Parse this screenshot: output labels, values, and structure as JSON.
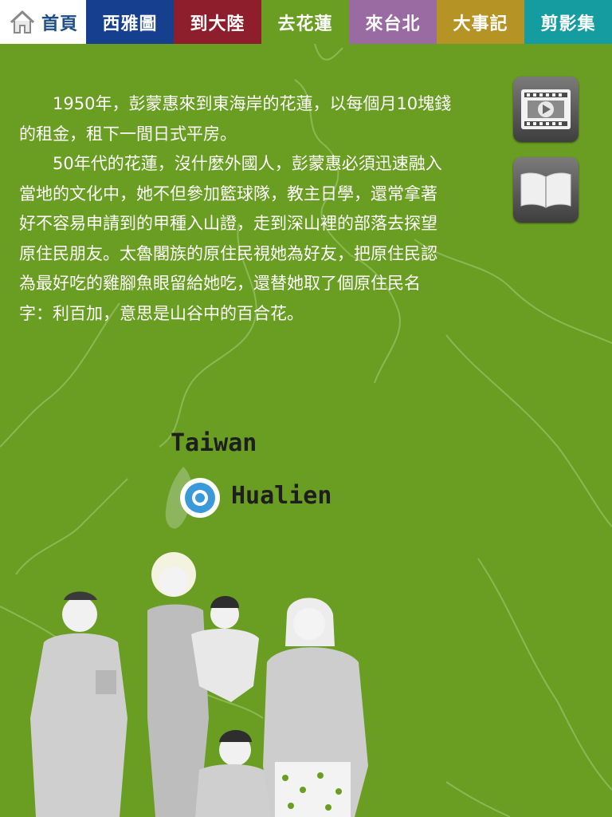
{
  "nav": {
    "home_label": "首頁",
    "tabs": [
      "西雅圖",
      "到大陸",
      "去花蓮",
      "來台北",
      "大事記",
      "剪影集"
    ],
    "active_tab": "去花蓮"
  },
  "article": {
    "paragraphs": [
      "1950年，彭蒙惠來到東海岸的花蓮，以每個月10塊錢的租金，租下一間日式平房。",
      "50年代的花蓮，沒什麼外國人，彭蒙惠必須迅速融入當地的文化中，她不但參加籃球隊，教主日學，還常拿著好不容易申請到的甲種入山證，走到深山裡的部落去探望原住民朋友。太魯閣族的原住民視她為好友，把原住民認為最好吃的雞腳魚眼留給她吃，還替她取了個原住民名字：利百加，意思是山谷中的百合花。"
    ]
  },
  "side_buttons": {
    "video_icon": "film-play-icon",
    "book_icon": "open-book-icon"
  },
  "map": {
    "country_label": "Taiwan",
    "city_label": "Hualien"
  },
  "colors": {
    "background": "#6a9e22",
    "tab_seattle": "#173f8f",
    "tab_mainland": "#8f1e2d",
    "tab_hualien": "#6a9e22",
    "tab_taipei": "#9a6ba3",
    "tab_events": "#b69325",
    "tab_gallery": "#149ca1",
    "marker": "#3a9ad9"
  }
}
